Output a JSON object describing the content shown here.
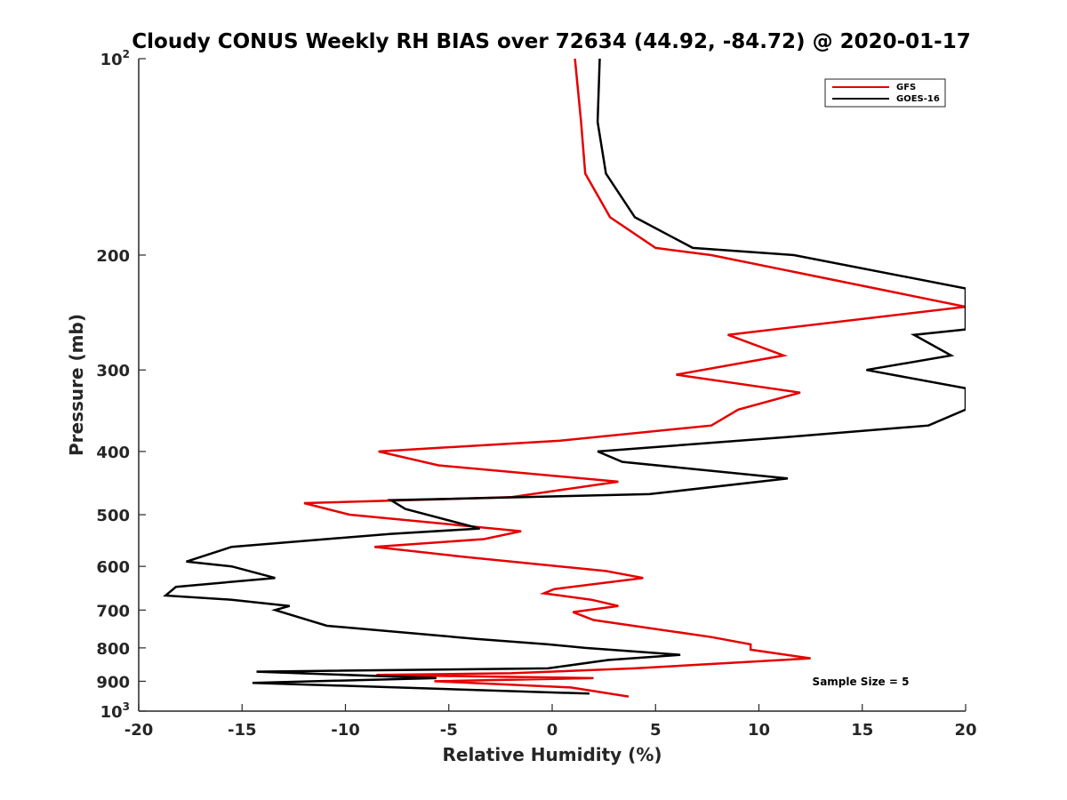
{
  "chart_data": {
    "type": "line",
    "title": "Cloudy CONUS Weekly RH BIAS over 72634 (44.92, -84.72) @ 2020-01-17",
    "xlabel": "Relative Humidity (%)",
    "ylabel": "Pressure (mb)",
    "xlim": [
      -20,
      20
    ],
    "ylim": [
      100,
      1000
    ],
    "yscale": "log",
    "y_reversed": true,
    "grid": false,
    "legend_position": "top-right",
    "xticks": [
      {
        "value": -20,
        "label": "-20"
      },
      {
        "value": -15,
        "label": "-15"
      },
      {
        "value": -10,
        "label": "-10"
      },
      {
        "value": -5,
        "label": "-5"
      },
      {
        "value": 0,
        "label": "0"
      },
      {
        "value": 5,
        "label": "5"
      },
      {
        "value": 10,
        "label": "10"
      },
      {
        "value": 15,
        "label": "15"
      },
      {
        "value": 20,
        "label": "20"
      }
    ],
    "yticks": [
      {
        "value": 100,
        "label": "10",
        "sup": "2"
      },
      {
        "value": 200,
        "label": "200"
      },
      {
        "value": 300,
        "label": "300"
      },
      {
        "value": 400,
        "label": "400"
      },
      {
        "value": 500,
        "label": "500"
      },
      {
        "value": 600,
        "label": "600"
      },
      {
        "value": 700,
        "label": "700"
      },
      {
        "value": 800,
        "label": "800"
      },
      {
        "value": 900,
        "label": "900"
      },
      {
        "value": 1000,
        "label": "10",
        "sup": "3"
      }
    ],
    "annotation": "Sample Size = 5",
    "series": [
      {
        "name": "GFS",
        "color": "#e60000",
        "points": [
          [
            1.1,
            100
          ],
          [
            1.4,
            125
          ],
          [
            1.6,
            150
          ],
          [
            2.8,
            175
          ],
          [
            5.0,
            195
          ],
          [
            7.7,
            200
          ],
          [
            20.0,
            240
          ],
          [
            8.5,
            265
          ],
          [
            11.2,
            285
          ],
          [
            6.0,
            305
          ],
          [
            12.0,
            325
          ],
          [
            9.0,
            345
          ],
          [
            7.7,
            365
          ],
          [
            0.4,
            385
          ],
          [
            -8.4,
            400
          ],
          [
            -5.5,
            420
          ],
          [
            3.2,
            445
          ],
          [
            -2.0,
            470
          ],
          [
            -12.0,
            480
          ],
          [
            -9.8,
            500
          ],
          [
            -1.5,
            530
          ],
          [
            -3.3,
            545
          ],
          [
            -8.6,
            560
          ],
          [
            -4.3,
            580
          ],
          [
            2.6,
            610
          ],
          [
            4.4,
            625
          ],
          [
            0.1,
            650
          ],
          [
            -0.4,
            660
          ],
          [
            1.9,
            675
          ],
          [
            3.2,
            690
          ],
          [
            1.0,
            705
          ],
          [
            2.0,
            725
          ],
          [
            7.7,
            770
          ],
          [
            9.6,
            790
          ],
          [
            9.6,
            805
          ],
          [
            12.5,
            830
          ],
          [
            4.0,
            860
          ],
          [
            -2.0,
            875
          ],
          [
            -8.5,
            880
          ],
          [
            2.0,
            890
          ],
          [
            -5.7,
            900
          ],
          [
            0.9,
            920
          ],
          [
            3.7,
            950
          ]
        ]
      },
      {
        "name": "GOES-16",
        "color": "#000000",
        "points": [
          [
            2.3,
            100
          ],
          [
            2.2,
            125
          ],
          [
            2.6,
            150
          ],
          [
            4.0,
            175
          ],
          [
            6.8,
            195
          ],
          [
            11.7,
            200
          ],
          [
            20.0,
            225
          ],
          [
            20.0,
            260
          ],
          [
            17.5,
            265
          ],
          [
            19.3,
            285
          ],
          [
            15.2,
            300
          ],
          [
            20.0,
            320
          ],
          [
            20.0,
            345
          ],
          [
            18.2,
            365
          ],
          [
            11.4,
            380
          ],
          [
            2.2,
            400
          ],
          [
            3.4,
            415
          ],
          [
            11.4,
            440
          ],
          [
            4.7,
            465
          ],
          [
            -7.8,
            475
          ],
          [
            -7.1,
            490
          ],
          [
            -3.5,
            525
          ],
          [
            -7.8,
            535
          ],
          [
            -15.5,
            560
          ],
          [
            -17.7,
            590
          ],
          [
            -15.5,
            600
          ],
          [
            -13.4,
            625
          ],
          [
            -18.2,
            645
          ],
          [
            -18.7,
            665
          ],
          [
            -15.5,
            675
          ],
          [
            -12.7,
            690
          ],
          [
            -13.4,
            700
          ],
          [
            -10.9,
            740
          ],
          [
            -3.7,
            775
          ],
          [
            -0.2,
            790
          ],
          [
            1.6,
            800
          ],
          [
            6.2,
            820
          ],
          [
            2.7,
            835
          ],
          [
            -0.2,
            860
          ],
          [
            -14.3,
            870
          ],
          [
            -5.6,
            890
          ],
          [
            -14.5,
            905
          ],
          [
            1.8,
            940
          ]
        ]
      }
    ]
  }
}
